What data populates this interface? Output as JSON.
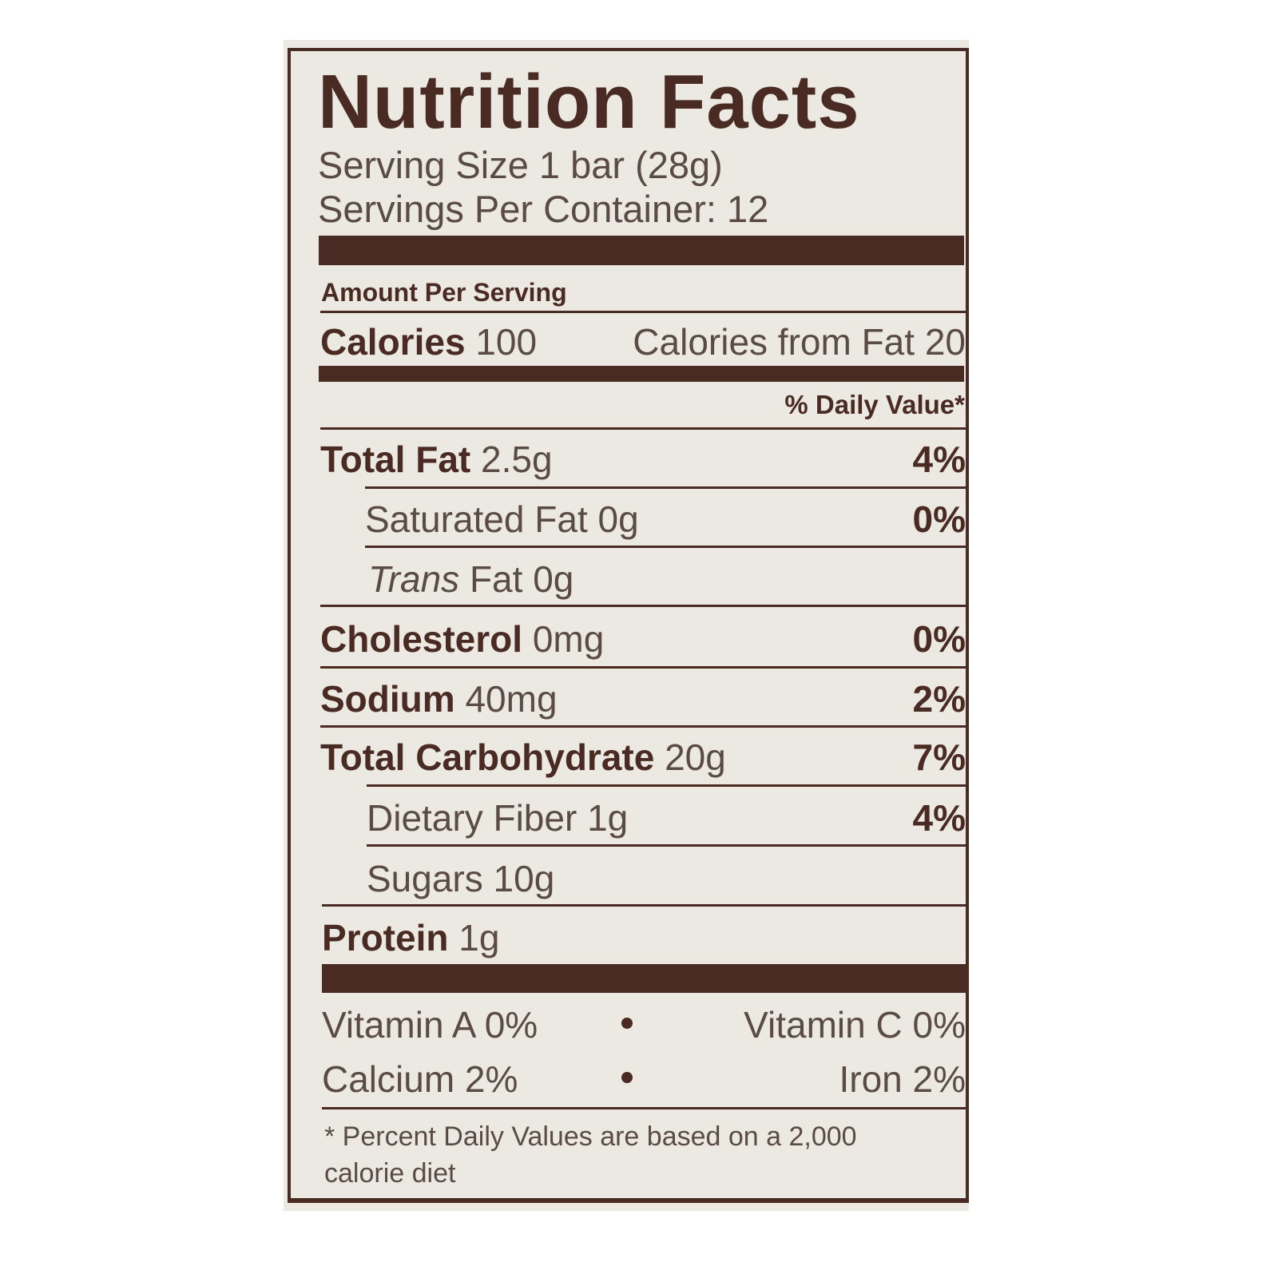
{
  "title": "Nutrition Facts",
  "serving_size": "Serving Size 1 bar (28g)",
  "servings_per_container": "Servings Per Container: 12",
  "amount_per_serving": "Amount Per Serving",
  "calories": {
    "label": "Calories",
    "value": "100",
    "from_fat": "Calories from Fat 20"
  },
  "daily_value_header": "% Daily Value*",
  "nutrients": [
    {
      "label": "Total Fat",
      "amount": "2.5g",
      "dv": "4%"
    },
    {
      "label": "Saturated Fat",
      "amount": "0g",
      "dv": "0%"
    },
    {
      "label": "Trans",
      "amount": "Fat 0g",
      "dv": ""
    },
    {
      "label": "Cholesterol",
      "amount": "0mg",
      "dv": "0%"
    },
    {
      "label": "Sodium",
      "amount": "40mg",
      "dv": "2%"
    },
    {
      "label": "Total Carbohydrate",
      "amount": "20g",
      "dv": "7%"
    },
    {
      "label": "Dietary Fiber",
      "amount": "1g",
      "dv": "4%"
    },
    {
      "label": "Sugars",
      "amount": "10g",
      "dv": ""
    },
    {
      "label": "Protein",
      "amount": "1g",
      "dv": ""
    }
  ],
  "vitamins": [
    {
      "left": "Vitamin A 0%",
      "right": "Vitamin C 0%"
    },
    {
      "left": "Calcium 2%",
      "right": "Iron 2%"
    }
  ],
  "footnote": "* Percent Daily Values are based on a 2,000 calorie diet",
  "colors": {
    "ink": "#4a2b23",
    "background": "#ebe9e2"
  }
}
